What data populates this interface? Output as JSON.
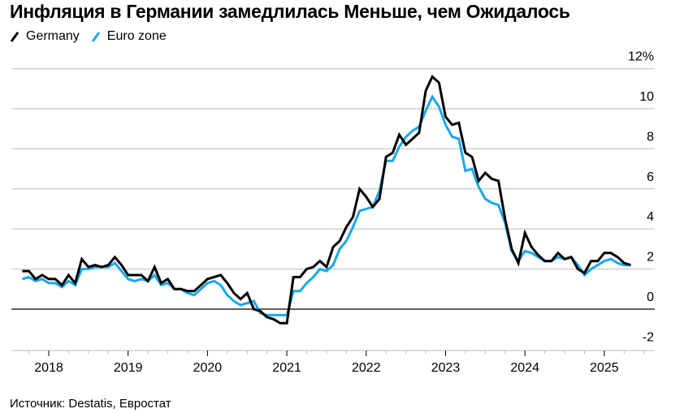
{
  "title": "Инфляция в Германии замедлилась Меньше, чем Ожидалось",
  "source": "Источник: Destatis, Евростат",
  "legend": [
    {
      "name": "Germany",
      "color": "#000000"
    },
    {
      "name": "Euro zone",
      "color": "#1aa7ec"
    }
  ],
  "chart_data": {
    "type": "line",
    "title": "Инфляция в Германии замедлилась Меньше, чем Ожидалось",
    "xlabel": "",
    "ylabel": "%",
    "ylim": [
      -2,
      12
    ],
    "yticks": [
      "12%",
      "10",
      "8",
      "6",
      "4",
      "2",
      "0",
      "-2"
    ],
    "xticks": [
      "2018",
      "2019",
      "2020",
      "2021",
      "2022",
      "2023",
      "2024",
      "2025"
    ],
    "grid": true,
    "legend_position": "top-left",
    "x_start": "2017-09",
    "x_end": "2025-05",
    "series": [
      {
        "name": "Germany",
        "color": "#000000",
        "values": [
          1.9,
          1.9,
          1.5,
          1.7,
          1.5,
          1.5,
          1.2,
          1.7,
          1.3,
          2.5,
          2.1,
          2.2,
          2.1,
          2.2,
          2.6,
          2.2,
          1.7,
          1.7,
          1.7,
          1.4,
          2.1,
          1.3,
          1.5,
          1.0,
          1.0,
          0.9,
          0.9,
          1.2,
          1.5,
          1.6,
          1.7,
          1.3,
          0.8,
          0.5,
          0.8,
          0.0,
          -0.1,
          -0.4,
          -0.5,
          -0.7,
          -0.7,
          1.6,
          1.6,
          2.0,
          2.1,
          2.4,
          2.1,
          3.1,
          3.4,
          4.1,
          4.6,
          6.0,
          5.6,
          5.1,
          5.5,
          7.6,
          7.8,
          8.7,
          8.2,
          8.5,
          8.8,
          10.9,
          11.6,
          11.3,
          9.6,
          9.2,
          9.3,
          7.8,
          7.6,
          6.4,
          6.8,
          6.5,
          6.4,
          4.5,
          3.0,
          2.3,
          3.8,
          3.1,
          2.7,
          2.4,
          2.4,
          2.8,
          2.5,
          2.6,
          2.0,
          1.8,
          2.4,
          2.4,
          2.8,
          2.8,
          2.6,
          2.3,
          2.2
        ],
        "note": "Approximate monthly y/y %, Sep 2017–May 2025"
      },
      {
        "name": "Euro zone",
        "color": "#1aa7ec",
        "values": [
          1.5,
          1.6,
          1.4,
          1.5,
          1.3,
          1.3,
          1.1,
          1.4,
          1.2,
          2.0,
          2.0,
          2.1,
          2.1,
          2.1,
          2.3,
          1.9,
          1.5,
          1.4,
          1.5,
          1.4,
          1.7,
          1.2,
          1.3,
          1.0,
          1.0,
          0.8,
          0.7,
          1.0,
          1.3,
          1.4,
          1.2,
          0.7,
          0.4,
          0.2,
          0.3,
          0.4,
          -0.2,
          -0.3,
          -0.3,
          -0.3,
          -0.3,
          0.9,
          0.9,
          1.3,
          1.6,
          2.0,
          1.9,
          2.2,
          3.0,
          3.4,
          4.1,
          4.9,
          5.0,
          5.1,
          5.9,
          7.4,
          7.4,
          8.1,
          8.6,
          8.9,
          9.1,
          9.9,
          10.6,
          10.1,
          9.2,
          8.6,
          8.5,
          6.9,
          7.0,
          6.1,
          5.5,
          5.3,
          5.2,
          4.3,
          2.9,
          2.4,
          2.9,
          2.8,
          2.6,
          2.4,
          2.4,
          2.6,
          2.5,
          2.6,
          2.2,
          1.7,
          2.0,
          2.2,
          2.4,
          2.5,
          2.3,
          2.2,
          2.2
        ],
        "note": "Approximate monthly y/y %, Sep 2017–May 2025"
      }
    ]
  }
}
